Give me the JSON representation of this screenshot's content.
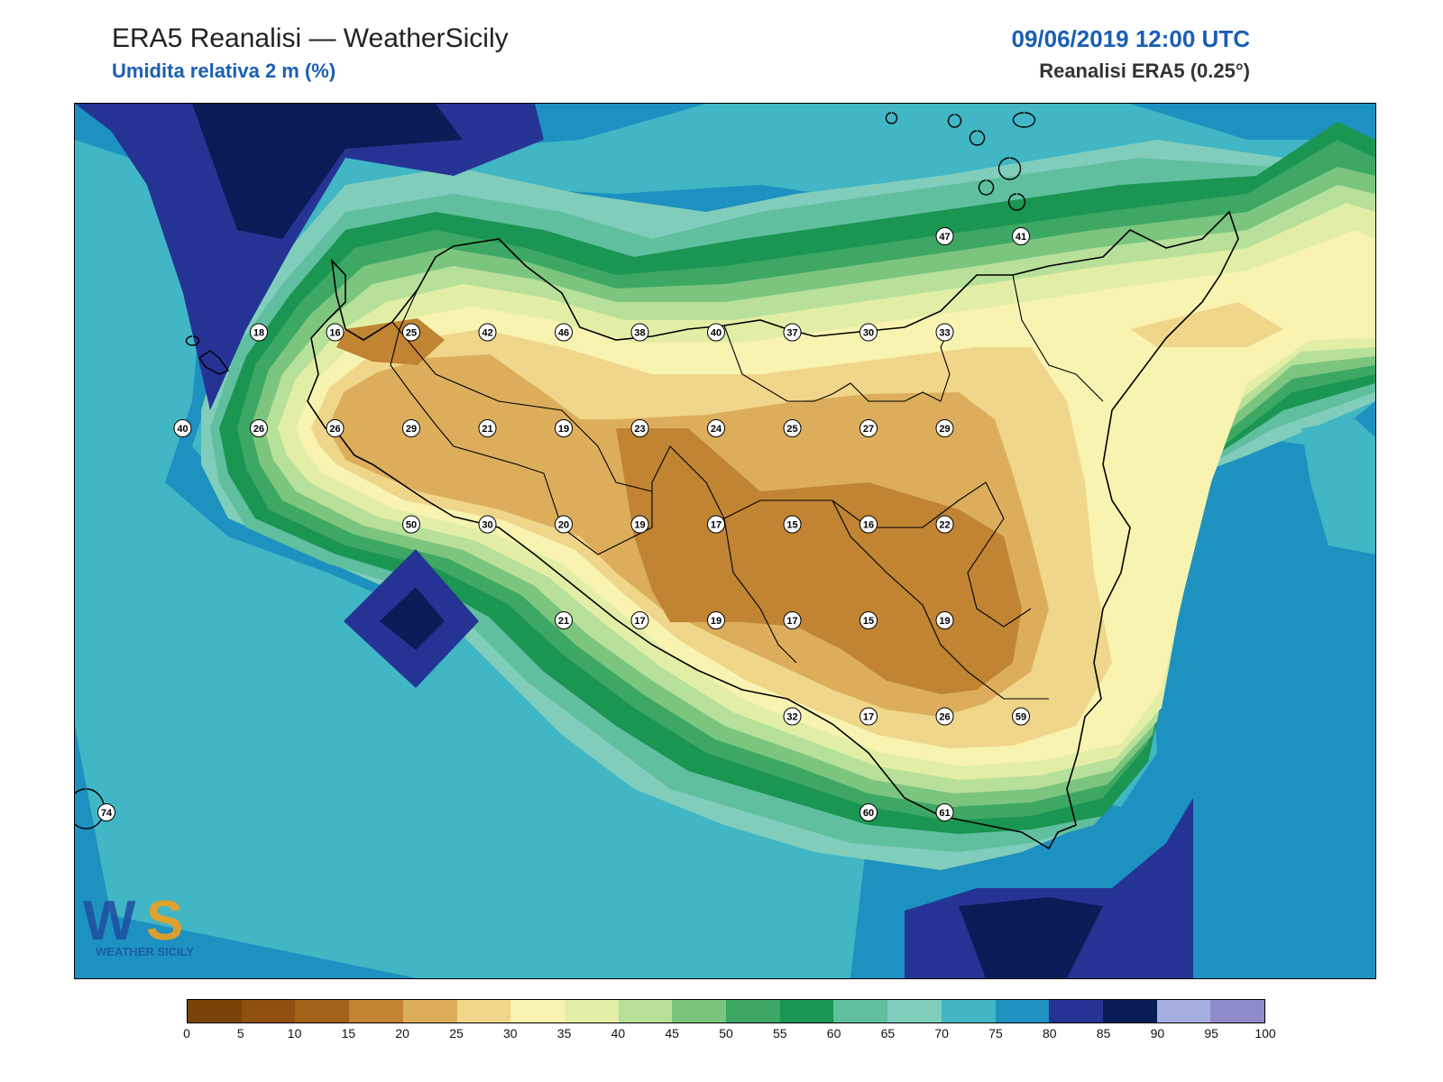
{
  "header": {
    "title": "ERA5 Reanalisi — WeatherSicily",
    "subtitle": "Umidita relativa 2 m (%)",
    "datetime": "09/06/2019 12:00 UTC",
    "source": "Reanalisi ERA5 (0.25°)"
  },
  "colors": {
    "subtitle": "#1a5fb4",
    "datetime": "#1a5fb4"
  },
  "colorbar": {
    "ticks": [
      "0",
      "5",
      "10",
      "15",
      "20",
      "25",
      "30",
      "35",
      "40",
      "45",
      "50",
      "55",
      "60",
      "65",
      "70",
      "75",
      "80",
      "85",
      "90",
      "95",
      "100"
    ],
    "colors": [
      "#7a4206",
      "#8f4f0e",
      "#a3611a",
      "#c08432",
      "#dcae5c",
      "#f0d68a",
      "#f8f3b0",
      "#e2eea6",
      "#b7e09a",
      "#7cc57f",
      "#3da863",
      "#1b9552",
      "#5fbf9f",
      "#80cdbc",
      "#41b6c4",
      "#1d91c0",
      "#253494",
      "#081d58",
      "#a5aedf",
      "#8e8cc9"
    ]
  },
  "logo": {
    "text": "WEATHER SICILY"
  },
  "stations": [
    {
      "v": "18",
      "lon": 12.57,
      "lat": 38.15
    },
    {
      "v": "16",
      "lon": 12.87,
      "lat": 38.15
    },
    {
      "v": "25",
      "lon": 13.17,
      "lat": 38.15
    },
    {
      "v": "42",
      "lon": 13.47,
      "lat": 38.15
    },
    {
      "v": "46",
      "lon": 13.77,
      "lat": 38.15
    },
    {
      "v": "38",
      "lon": 14.07,
      "lat": 38.15
    },
    {
      "v": "40",
      "lon": 14.37,
      "lat": 38.15
    },
    {
      "v": "37",
      "lon": 14.67,
      "lat": 38.15
    },
    {
      "v": "30",
      "lon": 14.97,
      "lat": 38.15
    },
    {
      "v": "33",
      "lon": 15.27,
      "lat": 38.15
    },
    {
      "v": "47",
      "lon": 15.27,
      "lat": 38.45
    },
    {
      "v": "41",
      "lon": 15.57,
      "lat": 38.45
    },
    {
      "v": "40",
      "lon": 12.27,
      "lat": 37.85
    },
    {
      "v": "26",
      "lon": 12.57,
      "lat": 37.85
    },
    {
      "v": "26",
      "lon": 12.87,
      "lat": 37.85
    },
    {
      "v": "29",
      "lon": 13.17,
      "lat": 37.85
    },
    {
      "v": "21",
      "lon": 13.47,
      "lat": 37.85
    },
    {
      "v": "19",
      "lon": 13.77,
      "lat": 37.85
    },
    {
      "v": "23",
      "lon": 14.07,
      "lat": 37.85
    },
    {
      "v": "24",
      "lon": 14.37,
      "lat": 37.85
    },
    {
      "v": "25",
      "lon": 14.67,
      "lat": 37.85
    },
    {
      "v": "27",
      "lon": 14.97,
      "lat": 37.85
    },
    {
      "v": "29",
      "lon": 15.27,
      "lat": 37.85
    },
    {
      "v": "50",
      "lon": 13.17,
      "lat": 37.55
    },
    {
      "v": "30",
      "lon": 13.47,
      "lat": 37.55
    },
    {
      "v": "20",
      "lon": 13.77,
      "lat": 37.55
    },
    {
      "v": "19",
      "lon": 14.07,
      "lat": 37.55
    },
    {
      "v": "17",
      "lon": 14.37,
      "lat": 37.55
    },
    {
      "v": "15",
      "lon": 14.67,
      "lat": 37.55
    },
    {
      "v": "16",
      "lon": 14.97,
      "lat": 37.55
    },
    {
      "v": "22",
      "lon": 15.27,
      "lat": 37.55
    },
    {
      "v": "21",
      "lon": 13.77,
      "lat": 37.25
    },
    {
      "v": "17",
      "lon": 14.07,
      "lat": 37.25
    },
    {
      "v": "19",
      "lon": 14.37,
      "lat": 37.25
    },
    {
      "v": "17",
      "lon": 14.67,
      "lat": 37.25
    },
    {
      "v": "15",
      "lon": 14.97,
      "lat": 37.25
    },
    {
      "v": "19",
      "lon": 15.27,
      "lat": 37.25
    },
    {
      "v": "32",
      "lon": 14.67,
      "lat": 36.95
    },
    {
      "v": "17",
      "lon": 14.97,
      "lat": 36.95
    },
    {
      "v": "26",
      "lon": 15.27,
      "lat": 36.95
    },
    {
      "v": "59",
      "lon": 15.57,
      "lat": 36.95
    },
    {
      "v": "74",
      "lon": 11.97,
      "lat": 36.65
    },
    {
      "v": "60",
      "lon": 14.97,
      "lat": 36.65
    },
    {
      "v": "61",
      "lon": 15.27,
      "lat": 36.65
    }
  ]
}
